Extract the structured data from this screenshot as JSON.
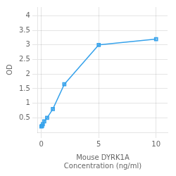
{
  "chart_data": {
    "type": "line",
    "x": [
      0,
      0.0625,
      0.125,
      0.25,
      0.5,
      1,
      2,
      5,
      10
    ],
    "values": [
      0.2,
      0.22,
      0.28,
      0.38,
      0.5,
      0.8,
      1.65,
      3.0,
      3.2
    ],
    "xlabel": "Mouse DYRK1A\nConcentration (ng/ml)",
    "ylabel": "OD",
    "xlim": [
      -0.3,
      11
    ],
    "xticks": [
      0,
      5,
      10
    ],
    "ylim": [
      0.0,
      4.3
    ],
    "yticks": [
      0.5,
      1.0,
      1.5,
      2.0,
      2.5,
      3.0,
      3.5,
      4.0
    ],
    "grid": true,
    "marker": "square",
    "line_style": "solid"
  }
}
